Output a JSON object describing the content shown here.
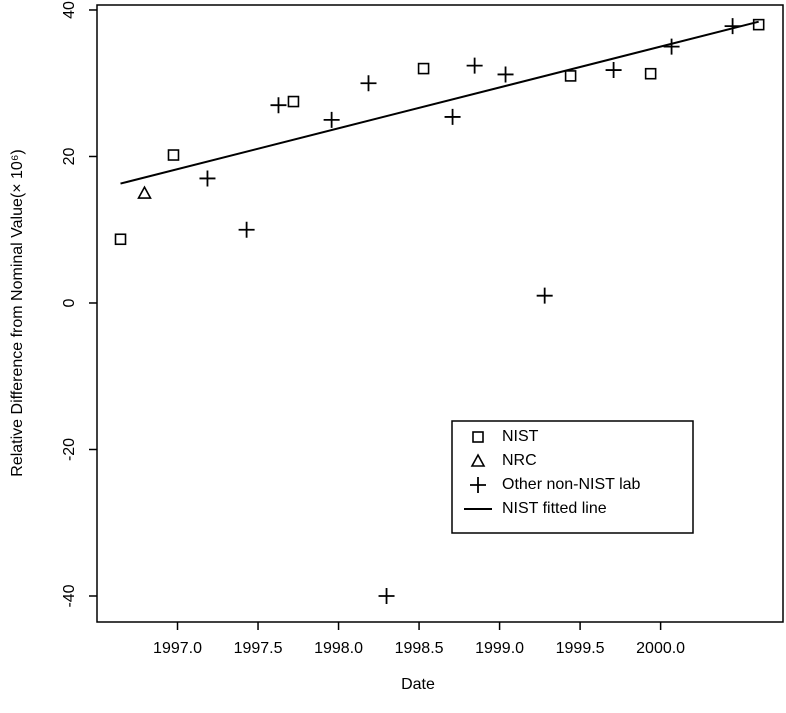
{
  "chart_data": {
    "type": "scatter",
    "x_label": "Date",
    "y_label": "Relative Difference from Nominal Value(× 10⁶)",
    "xlim": [
      1996.5,
      2000.76
    ],
    "ylim": [
      -43.55,
      40.68
    ],
    "xticks": [
      {
        "value": 1997,
        "label": "1997.0"
      },
      {
        "value": 1997.5,
        "label": "1997.5"
      },
      {
        "value": 1998,
        "label": "1998.0"
      },
      {
        "value": 1998.5,
        "label": "1998.5"
      },
      {
        "value": 1999,
        "label": "1999.0"
      },
      {
        "value": 1999.5,
        "label": "1999.5"
      },
      {
        "value": 2000,
        "label": "2000.0"
      }
    ],
    "yticks": [
      -40,
      -20,
      0,
      20,
      40
    ],
    "legend": "bottom-right",
    "series": [
      {
        "name": "NIST",
        "marker": "square",
        "color": "#000000",
        "x": [
          1996.646,
          1996.975,
          1997.72,
          1998.528,
          1999.441,
          1999.938,
          2000.609
        ],
        "values": [
          8.7,
          20.2,
          27.5,
          32,
          31,
          31.3,
          38
        ]
      },
      {
        "name": "NRC",
        "marker": "triangle",
        "color": "#000000",
        "x": [
          1996.795
        ],
        "values": [
          15
        ]
      },
      {
        "name": "Other non-NIST lab",
        "marker": "plus",
        "color": "#000000",
        "x": [
          1997.186,
          1997.429,
          1997.627,
          1997.957,
          1998.186,
          1998.298,
          1998.708,
          1998.845,
          1999.037,
          1999.28,
          1999.708,
          2000.068,
          2000.447
        ],
        "values": [
          17,
          10,
          27,
          25,
          30,
          -40,
          25.4,
          32.4,
          31.2,
          1,
          31.8,
          35,
          37.8
        ]
      },
      {
        "name": "NIST fitted line",
        "marker": "line",
        "color": "#000000",
        "x": [
          1996.646,
          2000.609
        ],
        "values": [
          16.3,
          38.4
        ]
      }
    ]
  }
}
